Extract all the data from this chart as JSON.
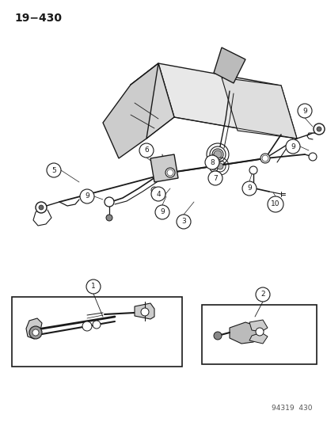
{
  "title": "19−430",
  "footer": "94319  430",
  "bg_color": "#ffffff",
  "line_color": "#1a1a1a",
  "fig_width": 4.14,
  "fig_height": 5.33,
  "dpi": 100,
  "title_fontsize": 10,
  "footer_fontsize": 6.5,
  "label_fontsize": 7
}
